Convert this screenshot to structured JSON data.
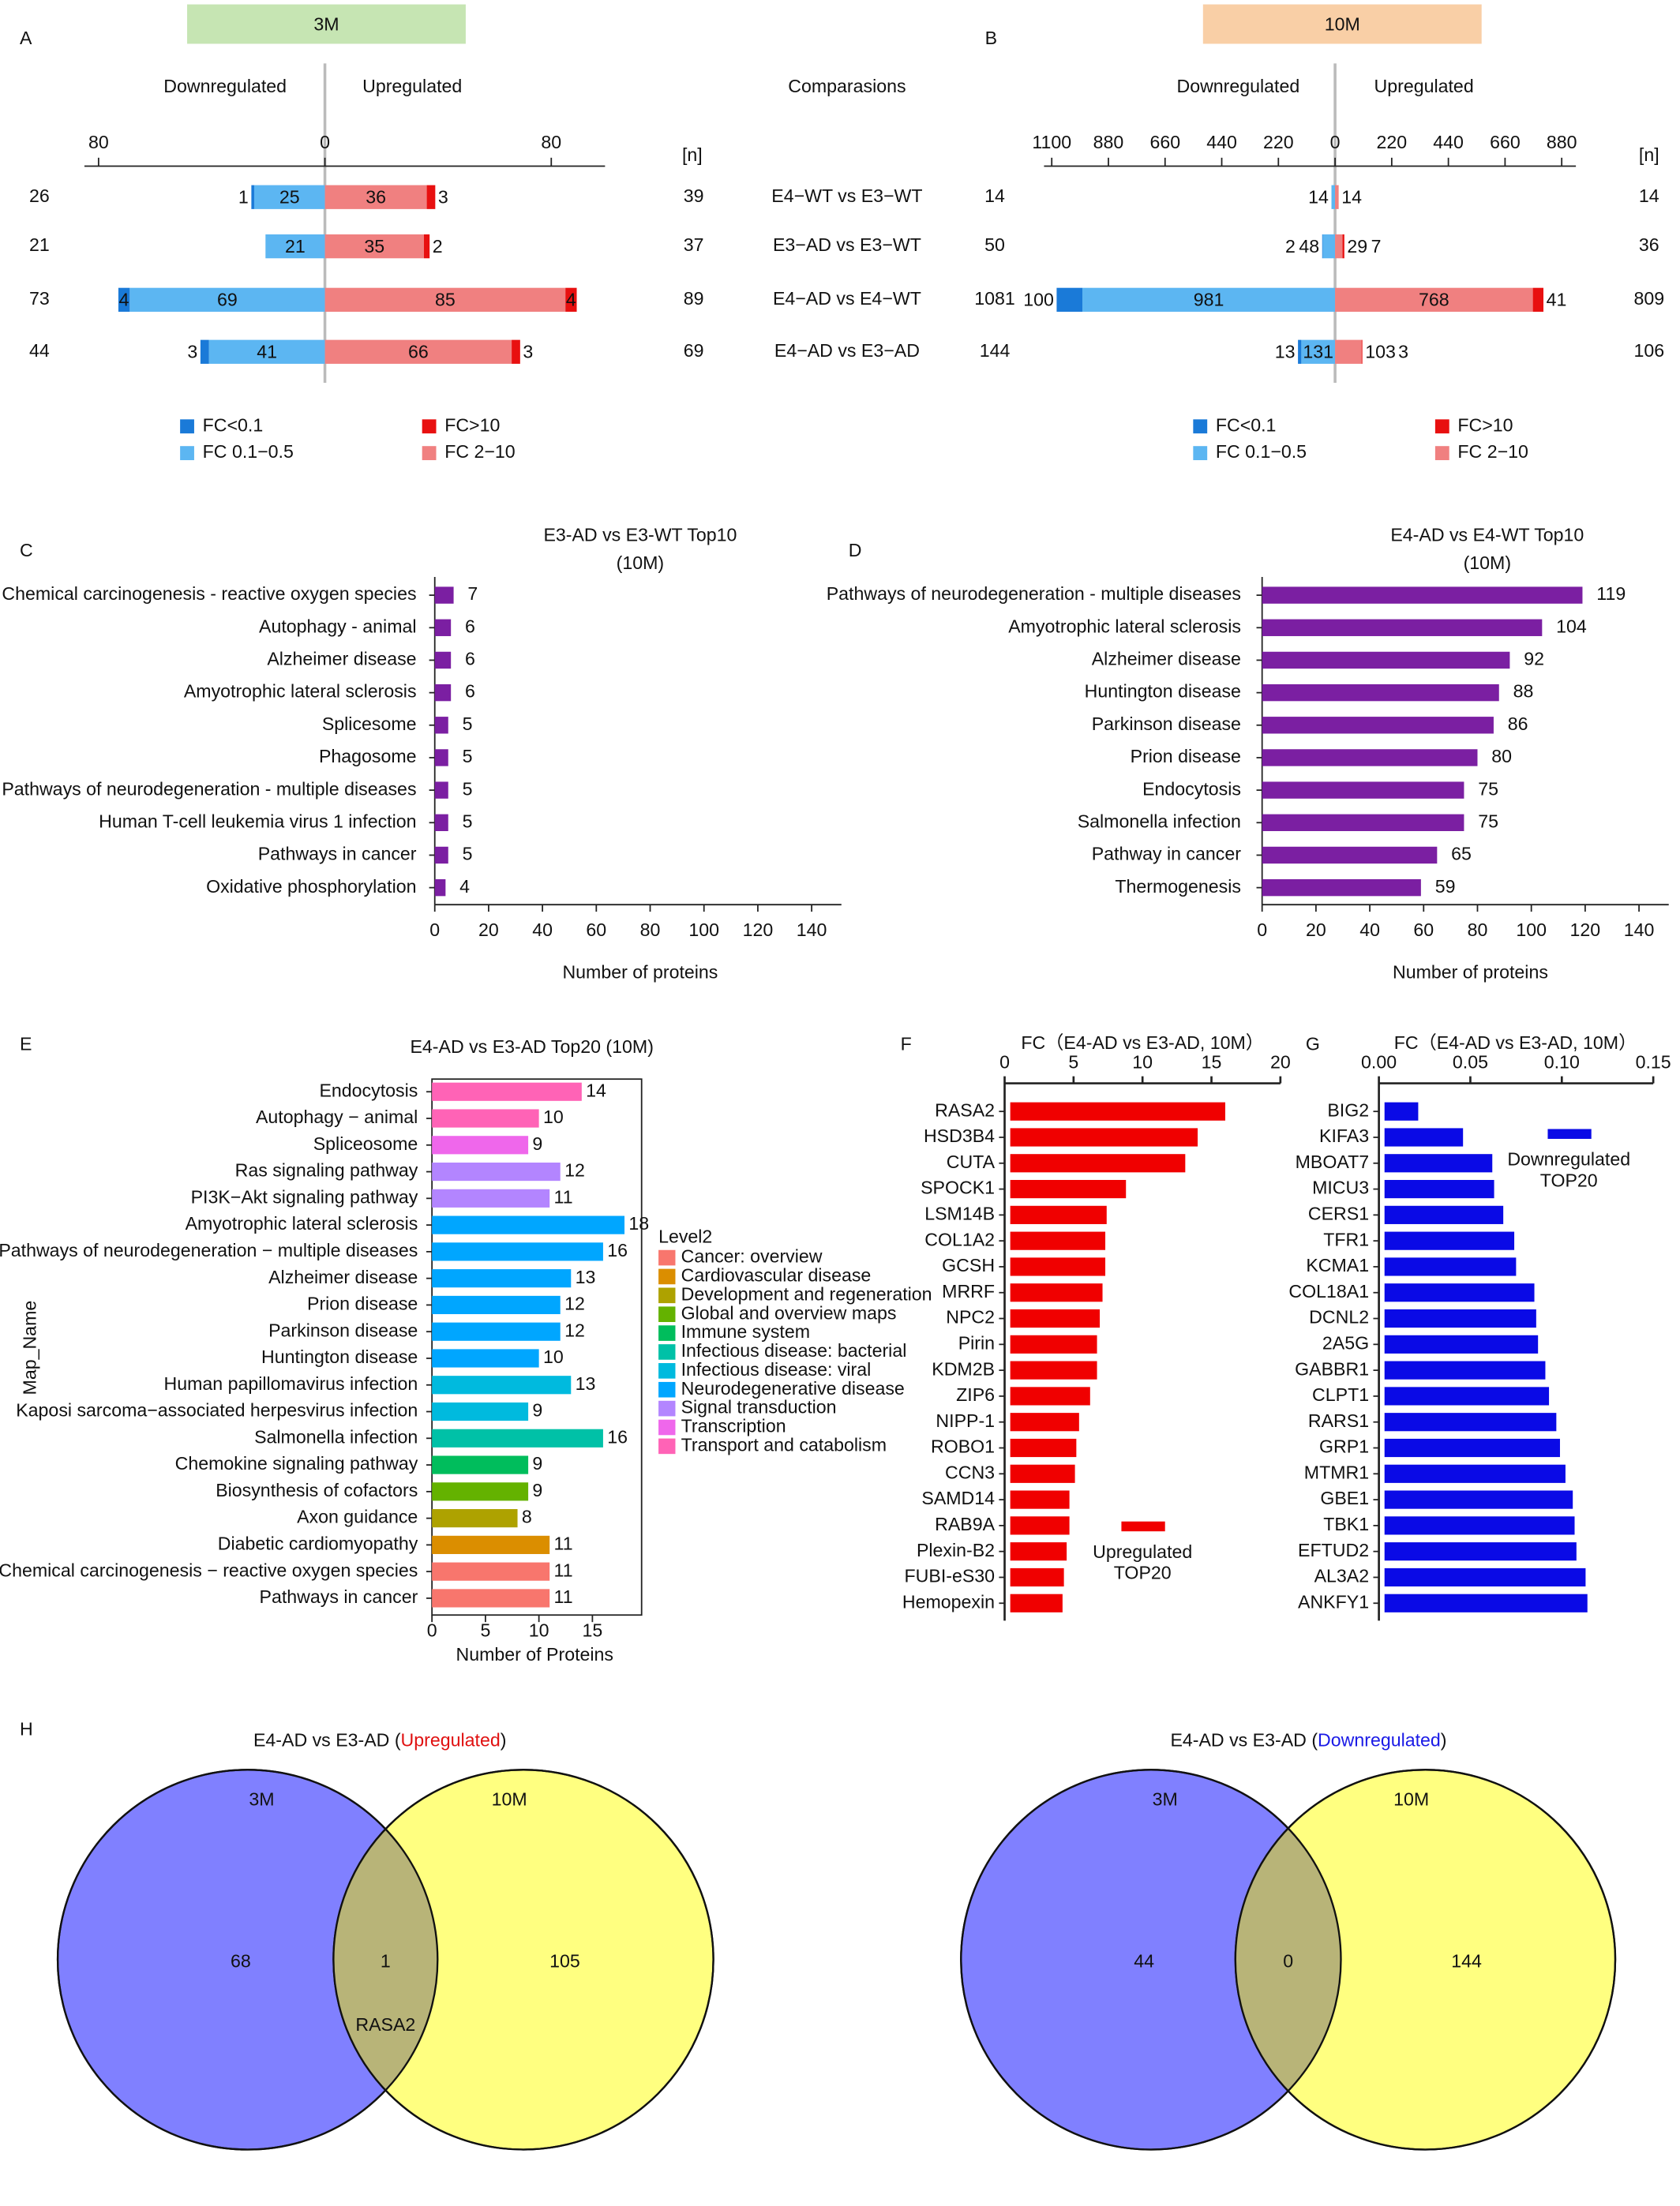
{
  "chart_data": [
    {
      "type": "diverging_bar",
      "panel": "A",
      "header": "3M",
      "header_color": "#c6e5b3",
      "left_label": "Downregulated",
      "left_color": "#1a1ae6",
      "right_label": "Upregulated",
      "right_color": "#e01010",
      "n_label": "[n]",
      "column_title": "Comparasions",
      "categories": [
        "E4−WT vs E3−WT",
        "E3−AD vs E3−WT",
        "E4−AD vs E4−WT",
        "E4−AD vs E3−AD"
      ],
      "xlim": [
        -85,
        99
      ],
      "xticks": [
        {
          "value": -80,
          "label": "80"
        },
        0,
        80
      ],
      "left_totals": [
        26,
        21,
        73,
        44
      ],
      "right_totals": [
        39,
        37,
        89,
        69
      ],
      "series": [
        {
          "name": "FC 0.1−0.5",
          "side": "left",
          "color": "#5cb6f2",
          "values": [
            25,
            21,
            69,
            41
          ]
        },
        {
          "name": "FC<0.1",
          "side": "left",
          "color": "#1a7ad8",
          "values": [
            1,
            null,
            4,
            3
          ]
        },
        {
          "name": "FC 2−10",
          "side": "right",
          "color": "#f08080",
          "values": [
            36,
            35,
            85,
            66
          ]
        },
        {
          "name": "FC>10",
          "side": "right",
          "color": "#e81010",
          "values": [
            3,
            2,
            4,
            3
          ]
        }
      ]
    },
    {
      "type": "diverging_bar",
      "panel": "B",
      "header": "10M",
      "header_color": "#f9cfa6",
      "left_label": "Downregulated",
      "left_color": "#1a1ae6",
      "right_label": "Upregulated",
      "right_color": "#e01010",
      "n_label": "[n]",
      "xlim": [
        -1130,
        935
      ],
      "xticks": [
        {
          "value": -1100,
          "label": "1100"
        },
        {
          "value": -880,
          "label": "880"
        },
        {
          "value": -660,
          "label": "660"
        },
        {
          "value": -440,
          "label": "440"
        },
        {
          "value": -220,
          "label": "220"
        },
        0,
        220,
        440,
        660,
        880
      ],
      "left_totals": [
        14,
        50,
        1081,
        144
      ],
      "right_totals": [
        14,
        36,
        809,
        106
      ],
      "series": [
        {
          "name": "FC 0.1−0.5",
          "side": "left",
          "color": "#5cb6f2",
          "values": [
            14,
            48,
            981,
            131
          ]
        },
        {
          "name": "FC<0.1",
          "side": "left",
          "color": "#1a7ad8",
          "values": [
            null,
            2,
            100,
            13
          ]
        },
        {
          "name": "FC 2−10",
          "side": "right",
          "color": "#f08080",
          "values": [
            14,
            29,
            768,
            103
          ]
        },
        {
          "name": "FC>10",
          "side": "right",
          "color": "#e81010",
          "values": [
            null,
            7,
            41,
            3
          ]
        }
      ]
    },
    {
      "type": "hbar",
      "panel": "C",
      "title": "E3-AD vs E3-WT  Top10",
      "subtitle": "(10M)",
      "categories": [
        "Chemical carcinogenesis - reactive oxygen species",
        "Autophagy - animal",
        "Alzheimer disease",
        "Amyotrophic lateral sclerosis",
        "Splicesome",
        "Phagosome",
        "Pathways of neurodegeneration - multiple diseases",
        "Human T-cell leukemia virus 1 infection",
        "Pathways in cancer",
        "Oxidative phosphorylation"
      ],
      "values": [
        7,
        6,
        6,
        6,
        5,
        5,
        5,
        5,
        5,
        4
      ],
      "color": "#7b1fa2",
      "xlim": [
        0,
        150
      ],
      "xticks": [
        0,
        20,
        40,
        60,
        80,
        100,
        120,
        140
      ],
      "xlabel": "Number of proteins"
    },
    {
      "type": "hbar",
      "panel": "D",
      "title": "E4-AD vs E4-WT  Top10",
      "subtitle": "(10M)",
      "categories": [
        "Pathways of neurodegeneration - multiple diseases",
        "Amyotrophic lateral sclerosis",
        "Alzheimer disease",
        "Huntington disease",
        "Parkinson disease",
        "Prion disease",
        "Endocytosis",
        "Salmonella infection",
        "Pathway in cancer",
        "Thermogenesis"
      ],
      "values": [
        119,
        104,
        92,
        88,
        86,
        80,
        75,
        75,
        65,
        59
      ],
      "color": "#7b1fa2",
      "xlim": [
        0,
        150
      ],
      "xticks": [
        0,
        20,
        40,
        60,
        80,
        100,
        120,
        140
      ],
      "xlabel": "Number of proteins"
    },
    {
      "type": "hbar",
      "panel": "E",
      "title": "E4-AD vs E3-AD  Top20 (10M)",
      "categories": [
        "Endocytosis",
        "Autophagy − animal",
        "Spliceosome",
        "Ras signaling pathway",
        "PI3K−Akt signaling pathway",
        "Amyotrophic lateral sclerosis",
        "Pathways of neurodegeneration − multiple diseases",
        "Alzheimer disease",
        "Prion disease",
        "Parkinson disease",
        "Huntington disease",
        "Human papillomavirus infection",
        "Kaposi sarcoma−associated herpesvirus infection",
        "Salmonella infection",
        "Chemokine signaling pathway",
        "Biosynthesis of cofactors",
        "Axon guidance",
        "Diabetic cardiomyopathy",
        "Chemical carcinogenesis − reactive oxygen species",
        "Pathways in cancer"
      ],
      "values": [
        14,
        10,
        9,
        12,
        11,
        18,
        16,
        13,
        12,
        12,
        10,
        13,
        9,
        16,
        9,
        9,
        8,
        11,
        11,
        11
      ],
      "colors": [
        "#FF63B6",
        "#FF63B6",
        "#EF67EB",
        "#B385FF",
        "#B385FF",
        "#00A6FF",
        "#00A6FF",
        "#00A6FF",
        "#00A6FF",
        "#00A6FF",
        "#00A6FF",
        "#00BADE",
        "#00BADE",
        "#00C1A7",
        "#00BD5C",
        "#64B200",
        "#AEA200",
        "#DB8E00",
        "#F8766D",
        "#F8766D"
      ],
      "xlim": [
        0,
        19.6
      ],
      "xticks": [
        0,
        5,
        10,
        15
      ],
      "xlabel": "Number of Proteins",
      "ylabel": "Map_Name",
      "legend_title": "Level2",
      "legend": [
        {
          "name": "Cancer: overview",
          "color": "#F8766D"
        },
        {
          "name": "Cardiovascular disease",
          "color": "#DB8E00"
        },
        {
          "name": "Development and regeneration",
          "color": "#AEA200"
        },
        {
          "name": "Global and overview maps",
          "color": "#64B200"
        },
        {
          "name": "Immune system",
          "color": "#00BD5C"
        },
        {
          "name": "Infectious disease: bacterial",
          "color": "#00C1A7"
        },
        {
          "name": "Infectious disease: viral",
          "color": "#00BADE"
        },
        {
          "name": "Neurodegenerative disease",
          "color": "#00A6FF"
        },
        {
          "name": "Signal transduction",
          "color": "#B385FF"
        },
        {
          "name": "Transcription",
          "color": "#EF67EB"
        },
        {
          "name": "Transport and catabolism",
          "color": "#FF63B6"
        }
      ]
    },
    {
      "type": "hbar_top",
      "panel": "F",
      "title": "FC（E4-AD vs E3-AD, 10M）",
      "categories": [
        "RASA2",
        "HSD3B4",
        "CUTA",
        "SPOCK1",
        "LSM14B",
        "COL1A2",
        "GCSH",
        "MRRF",
        "NPC2",
        "Pirin",
        "KDM2B",
        "ZIP6",
        "NIPP-1",
        "ROBO1",
        "CCN3",
        "SAMD14",
        "RAB9A",
        "Plexin-B2",
        "FUBI-eS30",
        "Hemopexin"
      ],
      "values": [
        16.0,
        14.0,
        13.1,
        8.8,
        7.4,
        7.3,
        7.3,
        7.1,
        6.9,
        6.7,
        6.7,
        6.2,
        5.4,
        5.2,
        5.1,
        4.7,
        4.7,
        4.5,
        4.3,
        4.2
      ],
      "color": "#f00000",
      "label_colors": [
        "#111111",
        "#8b1a89",
        "#8b1a89",
        "#111111",
        "#111111",
        "#111111",
        "#8b1a89",
        "#8b1a89",
        "#111111",
        "#111111",
        "#111111",
        "#111111",
        "#111111",
        "#111111",
        "#111111",
        "#2e9b3a",
        "#111111",
        "#111111",
        "#111111",
        "#111111"
      ],
      "xlim": [
        0,
        20
      ],
      "xticks": [
        0,
        5,
        10,
        15,
        20
      ],
      "legend_label": "Upregulated",
      "legend_note": "TOP20"
    },
    {
      "type": "hbar_top",
      "panel": "G",
      "title": "FC（E4-AD vs E3-AD, 10M）",
      "categories": [
        "BIG2",
        "KIFA3",
        "MBOAT7",
        "MICU3",
        "CERS1",
        "TFR1",
        "KCMA1",
        "COL18A1",
        "DCNL2",
        "2A5G",
        "GABBR1",
        "CLPT1",
        "RARS1",
        "GRP1",
        "MTMR1",
        "GBE1",
        "TBK1",
        "EFTUD2",
        "AL3A2",
        "ANKFY1"
      ],
      "values": [
        0.0215,
        0.046,
        0.062,
        0.063,
        0.068,
        0.074,
        0.075,
        0.085,
        0.086,
        0.087,
        0.091,
        0.093,
        0.097,
        0.099,
        0.102,
        0.106,
        0.107,
        0.108,
        0.113,
        0.114
      ],
      "color": "#0a0ae6",
      "label_colors": [
        "#2e9b3a",
        "#2e9b3a",
        "#111111",
        "#8b1a89",
        "#111111",
        "#111111",
        "#111111",
        "#111111",
        "#111111",
        "#111111",
        "#2e9b3a",
        "#111111",
        "#111111",
        "#111111",
        "#111111",
        "#111111",
        "#111111",
        "#111111",
        "#111111",
        "#111111"
      ],
      "xlim": [
        0,
        0.15
      ],
      "xticks": [
        {
          "value": 0,
          "label": "0.00"
        },
        0.05,
        {
          "value": 0.1,
          "label": "0.10"
        },
        0.15
      ],
      "legend_label": "Downregulated",
      "legend_note": "TOP20"
    },
    {
      "type": "venn",
      "panel": "H",
      "title": [
        "E4-AD vs E3-AD (",
        "Upregulated",
        ")"
      ],
      "highlight_color": "#e01010",
      "sets": [
        {
          "name": "3M",
          "color": "#8080ff"
        },
        {
          "name": "10M",
          "color": "#ffff80"
        }
      ],
      "overlap_color": "#b8b478",
      "values": [
        68,
        1,
        105
      ],
      "overlap_label": "RASA2"
    },
    {
      "type": "venn",
      "title": [
        "E4-AD vs E3-AD (",
        "Downregulated",
        ")"
      ],
      "highlight_color": "#1a1ae6",
      "sets": [
        {
          "name": "3M",
          "color": "#8080ff"
        },
        {
          "name": "10M",
          "color": "#ffff80"
        }
      ],
      "overlap_color": "#b8b478",
      "values": [
        44,
        0,
        144
      ]
    }
  ]
}
